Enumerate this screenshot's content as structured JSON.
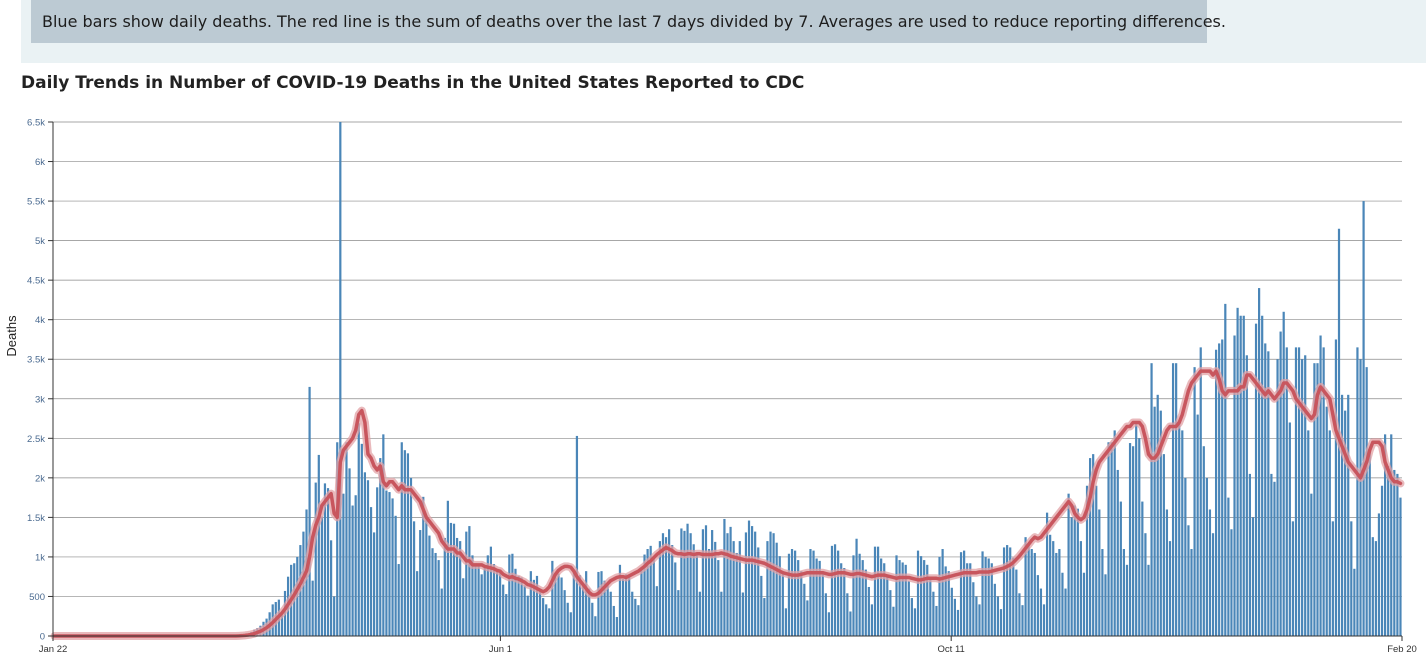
{
  "note": {
    "text": "Blue bars show daily deaths. The red line is the sum of deaths over the last 7 days divided by 7. Averages are used to reduce reporting differences."
  },
  "colors": {
    "bar": "#4a86b8",
    "line": "#c8565e",
    "line_glow": "#e2a1a5",
    "grid": "#8a8a8a",
    "tick_label": "#4a6a90",
    "note_band": "#eaf2f4",
    "note_box": "#bccad3"
  },
  "chart_data": {
    "type": "bar",
    "title": "Daily Trends in Number of COVID-19 Deaths in the United States Reported to CDC",
    "ylabel": "Deaths",
    "xlabel": "",
    "ylim": [
      0,
      6500
    ],
    "grid": true,
    "legend": "none",
    "y_ticks": [
      0,
      500,
      1000,
      1500,
      2000,
      2500,
      3000,
      3500,
      4000,
      4500,
      5000,
      5500,
      6000,
      6500
    ],
    "y_tick_labels": [
      "0",
      "500",
      "1k",
      "1.5k",
      "2k",
      "2.5k",
      "3k",
      "3.5k",
      "4k",
      "4.5k",
      "5k",
      "5.5k",
      "6k",
      "6.5k"
    ],
    "x_ticks": [
      {
        "date": "2020-01-22",
        "label": "Jan 22"
      },
      {
        "date": "2020-06-01",
        "label": "Jun 1"
      },
      {
        "date": "2020-10-11",
        "label": "Oct 11"
      },
      {
        "date": "2021-02-20",
        "label": "Feb 20"
      }
    ],
    "x_start": "2020-01-22",
    "x_end": "2021-02-20",
    "bar_values": [
      0,
      0,
      0,
      0,
      0,
      0,
      0,
      0,
      0,
      0,
      0,
      0,
      0,
      0,
      0,
      0,
      0,
      0,
      0,
      0,
      0,
      0,
      0,
      0,
      0,
      0,
      0,
      0,
      0,
      0,
      0,
      0,
      0,
      0,
      0,
      0,
      0,
      0,
      0,
      0,
      0,
      0,
      0,
      0,
      0,
      0,
      0,
      0,
      0,
      0,
      0,
      0,
      0,
      0,
      0,
      0,
      0,
      0,
      0,
      0,
      5,
      10,
      20,
      30,
      50,
      80,
      100,
      130,
      180,
      220,
      300,
      400,
      430,
      460,
      290,
      570,
      750,
      900,
      920,
      1000,
      1150,
      1320,
      1600,
      3150,
      700,
      1940,
      2290,
      1510,
      1930,
      1870,
      1210,
      500,
      2450,
      6500,
      1800,
      2450,
      2120,
      1650,
      1780,
      2690,
      2430,
      2070,
      1970,
      1630,
      1310,
      1880,
      2250,
      2550,
      1840,
      1820,
      1740,
      1520,
      910,
      2450,
      2350,
      2310,
      2000,
      1450,
      820,
      1340,
      1760,
      1500,
      1270,
      1110,
      1050,
      960,
      600,
      1240,
      1710,
      1430,
      1420,
      1240,
      1200,
      730,
      1320,
      1390,
      1020,
      920,
      910,
      780,
      860,
      1020,
      1130,
      910,
      830,
      800,
      650,
      530,
      1030,
      1040,
      850,
      760,
      740,
      640,
      510,
      820,
      710,
      760,
      580,
      480,
      400,
      350,
      950,
      740,
      790,
      740,
      580,
      420,
      300,
      810,
      2530,
      770,
      650,
      820,
      600,
      420,
      250,
      810,
      820,
      700,
      640,
      560,
      380,
      240,
      900,
      720,
      780,
      760,
      560,
      470,
      390,
      860,
      1030,
      1100,
      1140,
      990,
      630,
      1200,
      1300,
      1250,
      1350,
      1150,
      930,
      580,
      1360,
      1330,
      1420,
      1300,
      1160,
      1060,
      560,
      1350,
      1400,
      1100,
      1340,
      1190,
      960,
      560,
      1480,
      1300,
      1380,
      1200,
      1050,
      1200,
      550,
      1310,
      1460,
      1390,
      1320,
      1120,
      760,
      480,
      1200,
      1320,
      1300,
      1180,
      1010,
      800,
      350,
      1040,
      1100,
      1080,
      960,
      820,
      660,
      450,
      1100,
      1080,
      980,
      950,
      780,
      540,
      300,
      1140,
      1160,
      1080,
      920,
      860,
      540,
      310,
      1020,
      1230,
      1040,
      960,
      840,
      620,
      400,
      1130,
      1130,
      980,
      920,
      760,
      580,
      370,
      1020,
      960,
      930,
      900,
      690,
      480,
      350,
      1080,
      1010,
      960,
      900,
      720,
      560,
      380,
      1000,
      1100,
      880,
      820,
      610,
      470,
      330,
      1060,
      1080,
      920,
      920,
      680,
      500,
      400,
      1070,
      1000,
      980,
      920,
      660,
      500,
      340,
      1120,
      1150,
      1120,
      990,
      840,
      540,
      390,
      1250,
      1160,
      1100,
      1050,
      770,
      600,
      400,
      1560,
      1280,
      1200,
      1050,
      1100,
      800,
      600,
      1800,
      1500,
      1650,
      1610,
      1200,
      800,
      1900,
      2250,
      2300,
      1900,
      1600,
      1100,
      780,
      2450,
      2450,
      2600,
      2100,
      1700,
      1100,
      900,
      2440,
      2400,
      2700,
      2500,
      1700,
      1300,
      900,
      3450,
      2900,
      3050,
      2850,
      2300,
      1600,
      1200,
      3450,
      3450,
      2700,
      2600,
      2000,
      1400,
      1100,
      3400,
      2800,
      3650,
      2400,
      2000,
      1600,
      1300,
      3620,
      3700,
      3750,
      4200,
      1750,
      1350,
      3800,
      4150,
      4050,
      4050,
      3550,
      2050,
      1500,
      3950,
      4400,
      4050,
      3700,
      3600,
      2050,
      1950,
      3500,
      3850,
      4100,
      3650,
      2700,
      1450,
      3650,
      3650,
      3500,
      3550,
      2600,
      1800,
      3450,
      3450,
      3800,
      3650,
      2900,
      2600,
      1450,
      3750,
      5150,
      3050,
      2850,
      3050,
      1450,
      850,
      3650,
      3500,
      5500,
      3400,
      2350,
      1250,
      1200,
      1550,
      1900,
      2550,
      2150,
      2550,
      2100,
      2050,
      1750
    ],
    "avg_values": [
      0,
      0,
      0,
      0,
      0,
      0,
      0,
      0,
      0,
      0,
      0,
      0,
      0,
      0,
      0,
      0,
      0,
      0,
      0,
      0,
      0,
      0,
      0,
      0,
      0,
      0,
      0,
      0,
      0,
      0,
      0,
      0,
      0,
      0,
      0,
      0,
      0,
      0,
      0,
      0,
      0,
      0,
      0,
      0,
      0,
      0,
      0,
      0,
      0,
      0,
      0,
      0,
      0,
      0,
      0,
      0,
      0,
      0,
      0,
      0,
      2,
      4,
      8,
      13,
      20,
      30,
      45,
      60,
      80,
      105,
      135,
      170,
      210,
      250,
      290,
      340,
      400,
      460,
      520,
      590,
      660,
      740,
      820,
      1000,
      1250,
      1400,
      1500,
      1650,
      1700,
      1750,
      1800,
      1550,
      1500,
      2200,
      2350,
      2400,
      2450,
      2500,
      2600,
      2800,
      2850,
      2700,
      2300,
      2250,
      2150,
      2100,
      2150,
      1950,
      1900,
      1950,
      1950,
      1900,
      1850,
      1900,
      1850,
      1850,
      1850,
      1800,
      1750,
      1700,
      1600,
      1500,
      1450,
      1400,
      1350,
      1300,
      1200,
      1150,
      1100,
      1100,
      1100,
      1050,
      1050,
      1000,
      950,
      950,
      900,
      900,
      900,
      900,
      880,
      870,
      860,
      850,
      830,
      820,
      780,
      760,
      740,
      750,
      730,
      720,
      700,
      680,
      650,
      640,
      620,
      600,
      580,
      560,
      580,
      620,
      700,
      780,
      830,
      860,
      880,
      880,
      870,
      820,
      750,
      700,
      650,
      600,
      550,
      520,
      520,
      540,
      580,
      620,
      660,
      700,
      720,
      740,
      750,
      750,
      740,
      760,
      780,
      800,
      820,
      850,
      880,
      920,
      950,
      990,
      1030,
      1060,
      1090,
      1120,
      1100,
      1080,
      1050,
      1040,
      1040,
      1030,
      1040,
      1040,
      1030,
      1040,
      1040,
      1030,
      1030,
      1030,
      1030,
      1040,
      1040,
      1050,
      1040,
      1030,
      1010,
      1000,
      990,
      980,
      970,
      960,
      960,
      960,
      950,
      940,
      930,
      920,
      900,
      880,
      860,
      840,
      820,
      800,
      790,
      780,
      770,
      770,
      770,
      780,
      790,
      800,
      800,
      800,
      800,
      800,
      800,
      790,
      780,
      780,
      790,
      800,
      800,
      800,
      790,
      780,
      780,
      790,
      790,
      780,
      770,
      760,
      750,
      760,
      770,
      770,
      770,
      760,
      750,
      740,
      730,
      740,
      740,
      740,
      740,
      730,
      720,
      710,
      710,
      720,
      730,
      730,
      730,
      730,
      720,
      730,
      740,
      750,
      760,
      770,
      780,
      790,
      800,
      800,
      800,
      800,
      800,
      810,
      810,
      810,
      810,
      820,
      830,
      840,
      850,
      860,
      880,
      900,
      930,
      970,
      1010,
      1060,
      1110,
      1160,
      1210,
      1250,
      1230,
      1250,
      1300,
      1350,
      1400,
      1450,
      1500,
      1550,
      1600,
      1650,
      1700,
      1650,
      1550,
      1500,
      1470,
      1500,
      1600,
      1750,
      1950,
      2100,
      2200,
      2250,
      2300,
      2350,
      2400,
      2450,
      2500,
      2550,
      2600,
      2650,
      2650,
      2700,
      2700,
      2700,
      2650,
      2500,
      2300,
      2250,
      2250,
      2300,
      2400,
      2500,
      2600,
      2650,
      2650,
      2650,
      2700,
      2800,
      2950,
      3100,
      3200,
      3250,
      3300,
      3350,
      3350,
      3350,
      3350,
      3300,
      3350,
      3250,
      3100,
      3050,
      3100,
      3100,
      3100,
      3100,
      3150,
      3150,
      3300,
      3300,
      3250,
      3200,
      3150,
      3100,
      3050,
      3100,
      3050,
      3000,
      3050,
      3100,
      3200,
      3200,
      3150,
      3100,
      3000,
      2950,
      2900,
      2850,
      2800,
      2750,
      2800,
      3050,
      3150,
      3100,
      3050,
      3000,
      2800,
      2600,
      2500,
      2400,
      2300,
      2200,
      2150,
      2100,
      2050,
      2000,
      2100,
      2200,
      2350,
      2450,
      2450,
      2450,
      2400,
      2200,
      2100,
      2000,
      1950,
      1950,
      1930
    ]
  }
}
